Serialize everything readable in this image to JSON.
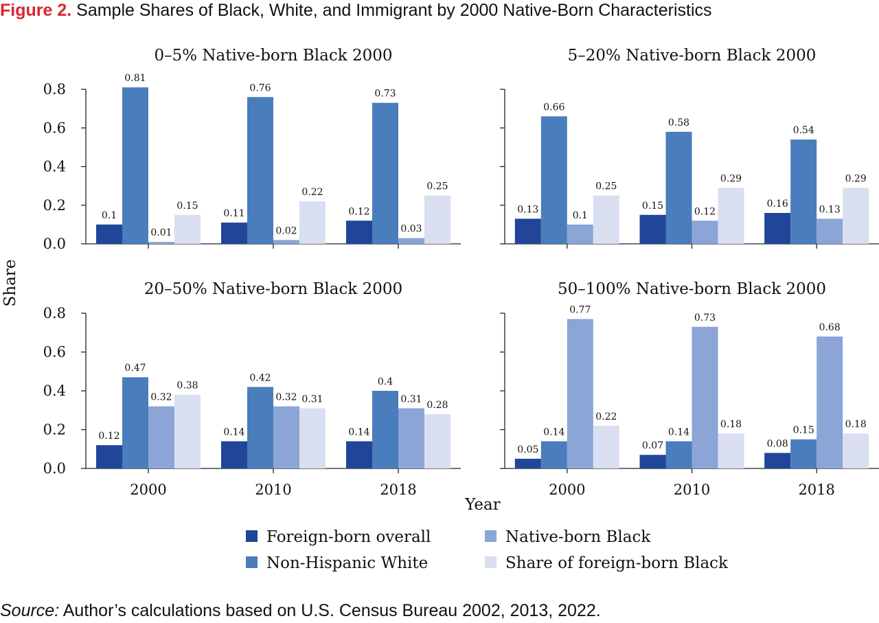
{
  "figure": {
    "label": "Figure 2.",
    "title": "Sample Shares of Black, White, and Immigrant by 2000 Native-Born Characteristics"
  },
  "source": {
    "label": "Source:",
    "text": "Author’s calculations based on U.S. Census Bureau 2002, 2013, 2022."
  },
  "colors": {
    "Foreign-born overall": "#214598",
    "Non-Hispanic White": "#4a7dbb",
    "Native-born Black": "#8aa5d6",
    "Share of foreign-born Black": "#d9def1"
  },
  "chart_data": {
    "type": "bar",
    "xlabel": "Year",
    "ylabel": "Share",
    "ylim": [
      0,
      0.8
    ],
    "yticks": [
      "0.0",
      "0.2",
      "0.4",
      "0.6",
      "0.8"
    ],
    "categories": [
      "2000",
      "2010",
      "2018"
    ],
    "legend": [
      "Foreign-born overall",
      "Non-Hispanic White",
      "Native-born Black",
      "Share of foreign-born Black"
    ],
    "legend_placement": "bottom",
    "panels": [
      {
        "title": "0–5% Native-born Black 2000",
        "series": [
          {
            "name": "Foreign-born overall",
            "values": [
              0.1,
              0.11,
              0.12
            ],
            "labels": [
              "0.1",
              "0.11",
              "0.12"
            ]
          },
          {
            "name": "Non-Hispanic White",
            "values": [
              0.81,
              0.76,
              0.73
            ],
            "labels": [
              "0.81",
              "0.76",
              "0.73"
            ]
          },
          {
            "name": "Native-born Black",
            "values": [
              0.01,
              0.02,
              0.03
            ],
            "labels": [
              "0.01",
              "0.02",
              "0.03"
            ]
          },
          {
            "name": "Share of foreign-born Black",
            "values": [
              0.15,
              0.22,
              0.25
            ],
            "labels": [
              "0.15",
              "0.22",
              "0.25"
            ]
          }
        ]
      },
      {
        "title": "5–20% Native-born Black 2000",
        "series": [
          {
            "name": "Foreign-born overall",
            "values": [
              0.13,
              0.15,
              0.16
            ],
            "labels": [
              "0.13",
              "0.15",
              "0.16"
            ]
          },
          {
            "name": "Non-Hispanic White",
            "values": [
              0.66,
              0.58,
              0.54
            ],
            "labels": [
              "0.66",
              "0.58",
              "0.54"
            ]
          },
          {
            "name": "Native-born Black",
            "values": [
              0.1,
              0.12,
              0.13
            ],
            "labels": [
              "0.1",
              "0.12",
              "0.13"
            ]
          },
          {
            "name": "Share of foreign-born Black",
            "values": [
              0.25,
              0.29,
              0.29
            ],
            "labels": [
              "0.25",
              "0.29",
              "0.29"
            ]
          }
        ]
      },
      {
        "title": "20–50% Native-born Black 2000",
        "series": [
          {
            "name": "Foreign-born overall",
            "values": [
              0.12,
              0.14,
              0.14
            ],
            "labels": [
              "0.12",
              "0.14",
              "0.14"
            ]
          },
          {
            "name": "Non-Hispanic White",
            "values": [
              0.47,
              0.42,
              0.4
            ],
            "labels": [
              "0.47",
              "0.42",
              "0.4"
            ]
          },
          {
            "name": "Native-born Black",
            "values": [
              0.32,
              0.32,
              0.31
            ],
            "labels": [
              "0.32",
              "0.32",
              "0.31"
            ]
          },
          {
            "name": "Share of foreign-born Black",
            "values": [
              0.38,
              0.31,
              0.28
            ],
            "labels": [
              "0.38",
              "0.31",
              "0.28"
            ]
          }
        ]
      },
      {
        "title": "50–100% Native-born Black 2000",
        "series": [
          {
            "name": "Foreign-born overall",
            "values": [
              0.05,
              0.07,
              0.08
            ],
            "labels": [
              "0.05",
              "0.07",
              "0.08"
            ]
          },
          {
            "name": "Non-Hispanic White",
            "values": [
              0.14,
              0.14,
              0.15
            ],
            "labels": [
              "0.14",
              "0.14",
              "0.15"
            ]
          },
          {
            "name": "Native-born Black",
            "values": [
              0.77,
              0.73,
              0.68
            ],
            "labels": [
              "0.77",
              "0.73",
              "0.68"
            ]
          },
          {
            "name": "Share of foreign-born Black",
            "values": [
              0.22,
              0.18,
              0.18
            ],
            "labels": [
              "0.22",
              "0.18",
              "0.18"
            ]
          }
        ]
      }
    ]
  }
}
